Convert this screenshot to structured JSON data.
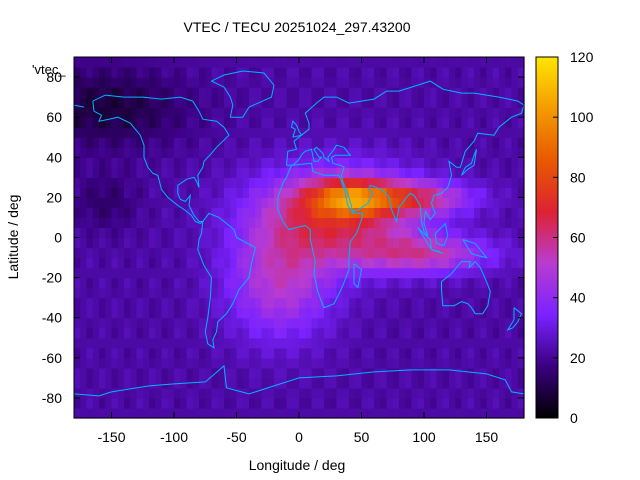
{
  "chart_data": {
    "type": "heatmap",
    "title": "VTEC / TECU 20251024_297.43200",
    "xlabel": "Longitude / deg",
    "ylabel": "Latitude / deg",
    "key_label": "'vtec_",
    "xlim": [
      -180,
      180
    ],
    "ylim": [
      -90,
      90
    ],
    "x_ticks": [
      -150,
      -100,
      -50,
      0,
      50,
      100,
      150
    ],
    "y_ticks": [
      -80,
      -60,
      -40,
      -20,
      0,
      20,
      40,
      60,
      80
    ],
    "colorbar": {
      "range": [
        0,
        120
      ],
      "ticks": [
        0,
        20,
        40,
        60,
        80,
        100,
        120
      ],
      "palette": [
        "#000000",
        "#3a0080",
        "#7a22ff",
        "#b93cd0",
        "#dd2233",
        "#e85a00",
        "#f59b00",
        "#ffe600"
      ]
    },
    "field_model": {
      "background_tecu": 22,
      "features": [
        {
          "lon": 30,
          "lat": 12,
          "sigma_lon": 45,
          "sigma_lat": 16,
          "amp_tecu": 45
        },
        {
          "lon": 40,
          "lat": 20,
          "sigma_lon": 22,
          "sigma_lat": 6,
          "amp_tecu": 35
        },
        {
          "lon": 90,
          "lat": 20,
          "sigma_lon": 35,
          "sigma_lat": 6,
          "amp_tecu": 32
        },
        {
          "lon": 100,
          "lat": -8,
          "sigma_lon": 40,
          "sigma_lat": 7,
          "amp_tecu": 30
        },
        {
          "lon": -15,
          "lat": -22,
          "sigma_lon": 30,
          "sigma_lat": 20,
          "amp_tecu": 28
        },
        {
          "lon": -155,
          "lat": 65,
          "sigma_lon": 45,
          "sigma_lat": 14,
          "amp_tecu": -14
        },
        {
          "lon": -155,
          "lat": 18,
          "sigma_lon": 18,
          "sigma_lat": 10,
          "amp_tecu": -8
        }
      ]
    }
  },
  "map_colors": {
    "coastline": "#00b4ff"
  }
}
